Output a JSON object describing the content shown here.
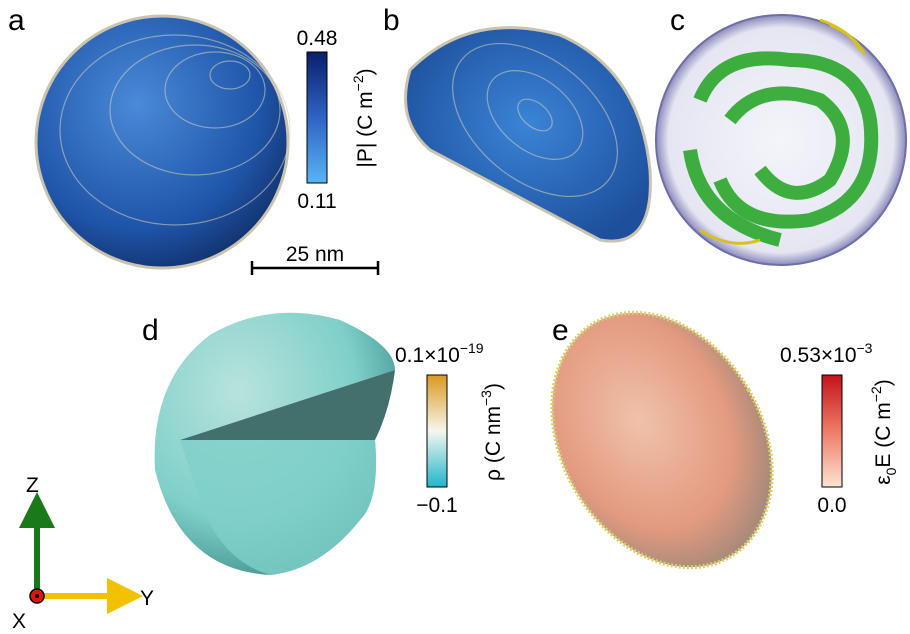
{
  "panels": {
    "a": {
      "label": "a",
      "colorbar": {
        "max": "0.48",
        "min": "0.11",
        "title": {
          "main": "|P|  (C m",
          "sup": "−2",
          "end": ")"
        }
      },
      "scale_bar": "25 nm"
    },
    "b": {
      "label": "b"
    },
    "c": {
      "label": "c"
    },
    "d": {
      "label": "d",
      "colorbar": {
        "max": {
          "main": "0.1×10",
          "sup": "−19"
        },
        "min": "−0.1",
        "title": {
          "main": "ρ (C nm",
          "sup": "−3",
          "end": ")"
        }
      }
    },
    "e": {
      "label": "e",
      "colorbar": {
        "max": {
          "main": "0.53×10",
          "sup": "−3"
        },
        "min": "0.0",
        "title": {
          "pre": "ε",
          "sub": "0",
          "main": "E (C m",
          "sup": "−2",
          "end": ")"
        }
      }
    }
  },
  "axes": {
    "z": "Z",
    "y": "Y",
    "x": "X"
  }
}
